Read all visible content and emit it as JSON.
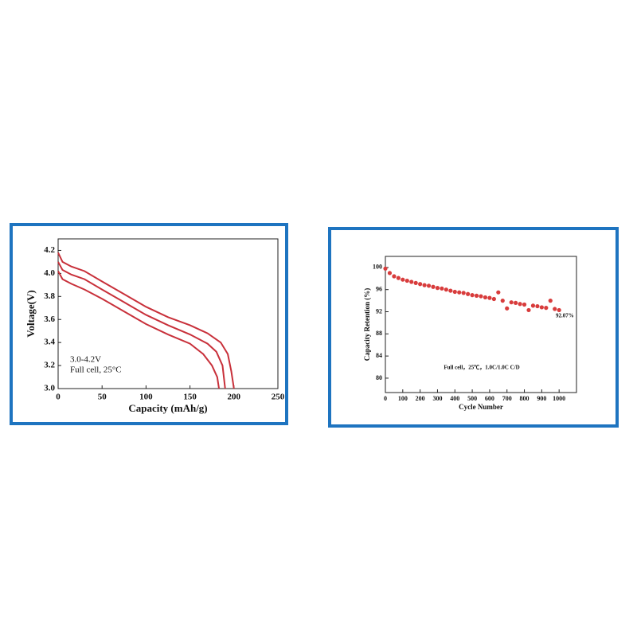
{
  "chart_data": [
    {
      "type": "line",
      "xlabel": "Capacity (mAh/g)",
      "ylabel": "Voltage(V)",
      "annotations": [
        "3.0-4.2V",
        "Full cell, 25°C"
      ],
      "xlim": [
        0,
        250
      ],
      "xticks": [
        0,
        50,
        100,
        150,
        200,
        250
      ],
      "ylim": [
        3.0,
        4.3
      ],
      "yticks": [
        {
          "value": 3.0,
          "label": "3.0"
        },
        3.2,
        3.4,
        3.6,
        3.8,
        {
          "value": 4.0,
          "label": "4.0"
        },
        4.2
      ],
      "series": [
        {
          "color": "#c8303a",
          "x": [
            0,
            5,
            15,
            30,
            50,
            75,
            100,
            125,
            150,
            170,
            185,
            193,
            197,
            200
          ],
          "values": [
            4.18,
            4.1,
            4.06,
            4.02,
            3.93,
            3.82,
            3.71,
            3.62,
            3.55,
            3.48,
            3.4,
            3.3,
            3.15,
            3.0
          ]
        },
        {
          "color": "#c8303a",
          "x": [
            0,
            5,
            15,
            30,
            50,
            75,
            100,
            125,
            150,
            170,
            180,
            187,
            190
          ],
          "values": [
            4.1,
            4.03,
            3.99,
            3.95,
            3.86,
            3.75,
            3.64,
            3.55,
            3.47,
            3.39,
            3.32,
            3.2,
            3.0
          ]
        },
        {
          "color": "#c8303a",
          "x": [
            0,
            5,
            15,
            30,
            50,
            75,
            100,
            125,
            150,
            165,
            175,
            181,
            183
          ],
          "values": [
            4.02,
            3.95,
            3.91,
            3.86,
            3.78,
            3.67,
            3.56,
            3.47,
            3.39,
            3.3,
            3.2,
            3.1,
            3.0
          ]
        }
      ]
    },
    {
      "type": "scatter",
      "xlabel": "Cycle Number",
      "ylabel": "Capacity Retention (%)",
      "annotations": [
        "Full cell，25℃，1.0C/1.0C C/D",
        "92.07%"
      ],
      "color": "#d83c3c",
      "xlim": [
        0,
        1100
      ],
      "xticks": [
        0,
        100,
        200,
        300,
        400,
        500,
        600,
        700,
        800,
        900,
        1000
      ],
      "ylim": [
        77.4,
        102
      ],
      "yticks": [
        80,
        84,
        88,
        92,
        96,
        100
      ],
      "x": [
        0,
        25,
        50,
        75,
        100,
        125,
        150,
        175,
        200,
        225,
        250,
        275,
        300,
        325,
        350,
        375,
        400,
        425,
        450,
        475,
        500,
        525,
        550,
        575,
        600,
        625,
        650,
        675,
        700,
        725,
        750,
        775,
        800,
        825,
        850,
        875,
        900,
        925,
        950,
        975,
        1000
      ],
      "values": [
        99.8,
        99.0,
        98.4,
        98.1,
        97.8,
        97.6,
        97.4,
        97.2,
        97.0,
        96.8,
        96.7,
        96.5,
        96.3,
        96.2,
        96.0,
        95.8,
        95.6,
        95.5,
        95.4,
        95.2,
        95.0,
        94.9,
        94.8,
        94.6,
        94.5,
        94.3,
        95.5,
        94.0,
        92.6,
        93.7,
        93.6,
        93.4,
        93.3,
        92.3,
        93.1,
        93.0,
        92.8,
        92.7,
        94.0,
        92.5,
        92.3
      ]
    }
  ]
}
